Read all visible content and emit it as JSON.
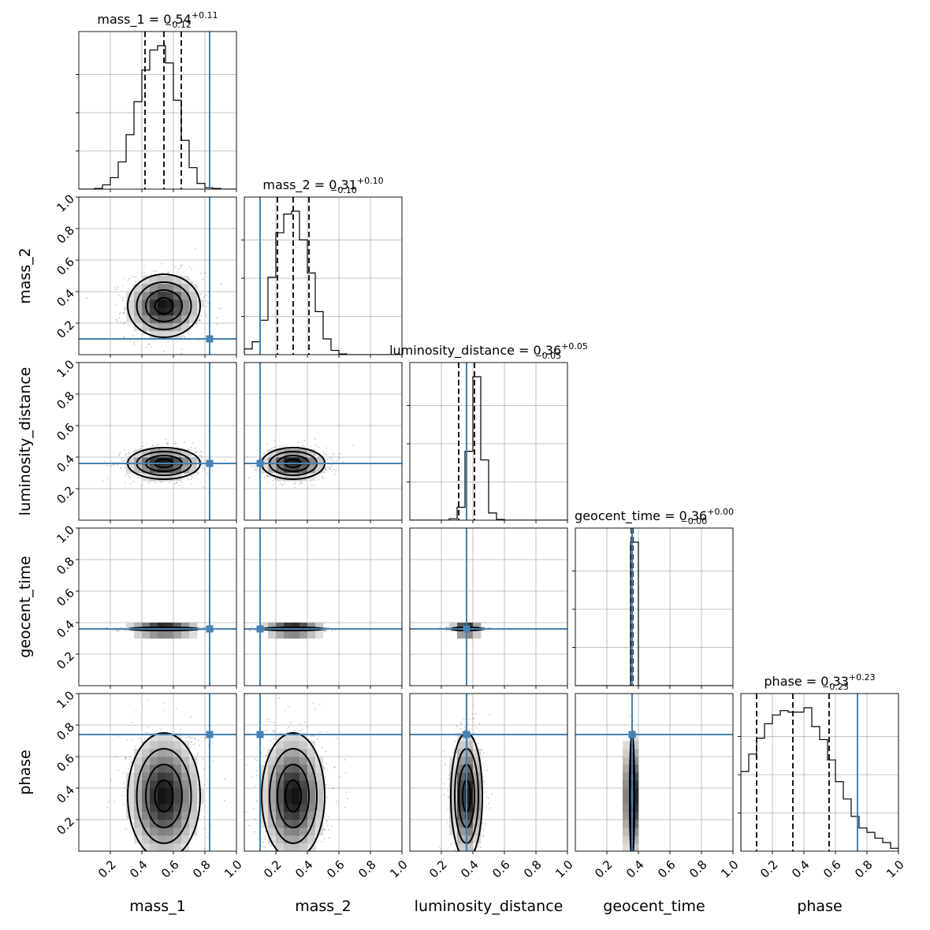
{
  "chart_data": {
    "type": "corner",
    "parameters": [
      "mass_1",
      "mass_2",
      "luminosity_distance",
      "geocent_time",
      "phase"
    ],
    "axis_range": [
      0.0,
      1.0
    ],
    "tick_values": [
      0.2,
      0.4,
      0.6,
      0.8,
      1.0
    ],
    "tick_labels": [
      "0.2",
      "0.4",
      "0.6",
      "0.8",
      "1.0"
    ],
    "grid": true,
    "titles": [
      {
        "name": "mass_1",
        "median": "0.54",
        "plus": "+0.11",
        "minus": "−0.12"
      },
      {
        "name": "mass_2",
        "median": "0.31",
        "plus": "+0.10",
        "minus": "−0.10"
      },
      {
        "name": "luminosity_distance",
        "median": "0.36",
        "plus": "+0.05",
        "minus": "−0.05"
      },
      {
        "name": "geocent_time",
        "median": "0.36",
        "plus": "+0.00",
        "minus": "−0.00"
      },
      {
        "name": "phase",
        "median": "0.33",
        "plus": "+0.23",
        "minus": "−0.23"
      }
    ],
    "truths": [
      0.83,
      0.1,
      0.36,
      0.36,
      0.74
    ],
    "quantiles": [
      [
        0.42,
        0.54,
        0.65
      ],
      [
        0.21,
        0.31,
        0.41
      ],
      [
        0.31,
        0.36,
        0.41
      ],
      [
        0.355,
        0.36,
        0.365
      ],
      [
        0.1,
        0.33,
        0.56
      ]
    ],
    "histograms": [
      {
        "bin_edges_range": [
          0.0,
          1.0
        ],
        "bins": 20,
        "counts": [
          0,
          0,
          0.005,
          0.03,
          0.08,
          0.19,
          0.38,
          0.61,
          0.83,
          0.97,
          1.0,
          0.88,
          0.62,
          0.34,
          0.15,
          0.04,
          0.01,
          0.005,
          0,
          0
        ]
      },
      {
        "bin_edges_range": [
          0.0,
          1.0
        ],
        "bins": 20,
        "counts": [
          0.04,
          0.09,
          0.24,
          0.54,
          0.85,
          0.98,
          1.0,
          0.8,
          0.57,
          0.3,
          0.11,
          0.03,
          0.005,
          0,
          0,
          0,
          0,
          0,
          0,
          0
        ]
      },
      {
        "bin_edges_range": [
          0.0,
          1.0
        ],
        "bins": 20,
        "counts": [
          0,
          0,
          0,
          0,
          0,
          0.01,
          0.09,
          0.48,
          1.0,
          0.42,
          0.05,
          0.005,
          0,
          0,
          0,
          0,
          0,
          0,
          0,
          0
        ]
      },
      {
        "bin_edges_range": [
          0.0,
          1.0
        ],
        "bins": 20,
        "counts": [
          0,
          0,
          0,
          0,
          0,
          0,
          0,
          1.0,
          0,
          0,
          0,
          0,
          0,
          0,
          0,
          0,
          0,
          0,
          0,
          0
        ]
      },
      {
        "bin_edges_range": [
          0.0,
          1.0
        ],
        "bins": 20,
        "counts": [
          0.55,
          0.67,
          0.78,
          0.88,
          0.94,
          0.97,
          0.96,
          0.96,
          0.99,
          0.86,
          0.77,
          0.63,
          0.48,
          0.36,
          0.24,
          0.16,
          0.13,
          0.09,
          0.06,
          0.02
        ]
      }
    ],
    "posterior_2d": {
      "mass_1": {
        "mean": 0.54,
        "std": 0.115
      },
      "mass_2": {
        "mean": 0.31,
        "std": 0.1
      },
      "luminosity_distance": {
        "mean": 0.36,
        "std": 0.05
      },
      "geocent_time": {
        "mean": 0.36,
        "std": 0.005
      },
      "phase": {
        "mean": 0.35,
        "std": 0.2
      }
    },
    "contour_levels_sigma": [
      0.5,
      1.0,
      1.5,
      2.0
    ]
  }
}
